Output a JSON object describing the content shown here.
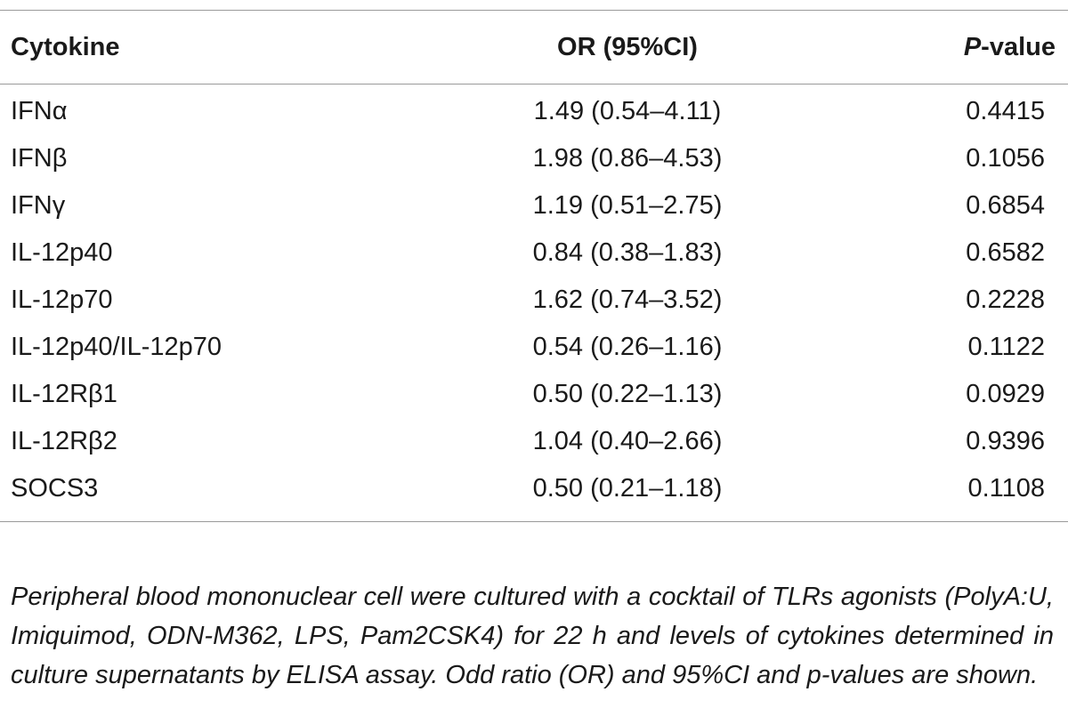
{
  "table": {
    "headers": {
      "cytokine": "Cytokine",
      "or": "OR (95%CI)",
      "p_italic": "P",
      "p_rest": "-value"
    },
    "rows": [
      {
        "cytokine": "IFNα",
        "or": "1.49 (0.54–4.11)",
        "p": "0.4415"
      },
      {
        "cytokine": "IFNβ",
        "or": "1.98 (0.86–4.53)",
        "p": "0.1056"
      },
      {
        "cytokine": "IFNγ",
        "or": "1.19 (0.51–2.75)",
        "p": "0.6854"
      },
      {
        "cytokine": "IL-12p40",
        "or": "0.84 (0.38–1.83)",
        "p": "0.6582"
      },
      {
        "cytokine": "IL-12p70",
        "or": "1.62 (0.74–3.52)",
        "p": "0.2228"
      },
      {
        "cytokine": "IL-12p40/IL-12p70",
        "or": "0.54 (0.26–1.16)",
        "p": "0.1122"
      },
      {
        "cytokine": "IL-12Rβ1",
        "or": "0.50 (0.22–1.13)",
        "p": "0.0929"
      },
      {
        "cytokine": "IL-12Rβ2",
        "or": "1.04 (0.40–2.66)",
        "p": "0.9396"
      },
      {
        "cytokine": "SOCS3",
        "or": "0.50 (0.21–1.18)",
        "p": "0.1108"
      }
    ]
  },
  "footnote": "Peripheral blood mononuclear cell were cultured with a cocktail of TLRs agonists (PolyA:U, Imiquimod, ODN-M362, LPS, Pam2CSK4) for 22 h and levels of cytokines determined in culture supernatants by ELISA assay. Odd ratio (OR) and 95%CI and p-values are shown."
}
